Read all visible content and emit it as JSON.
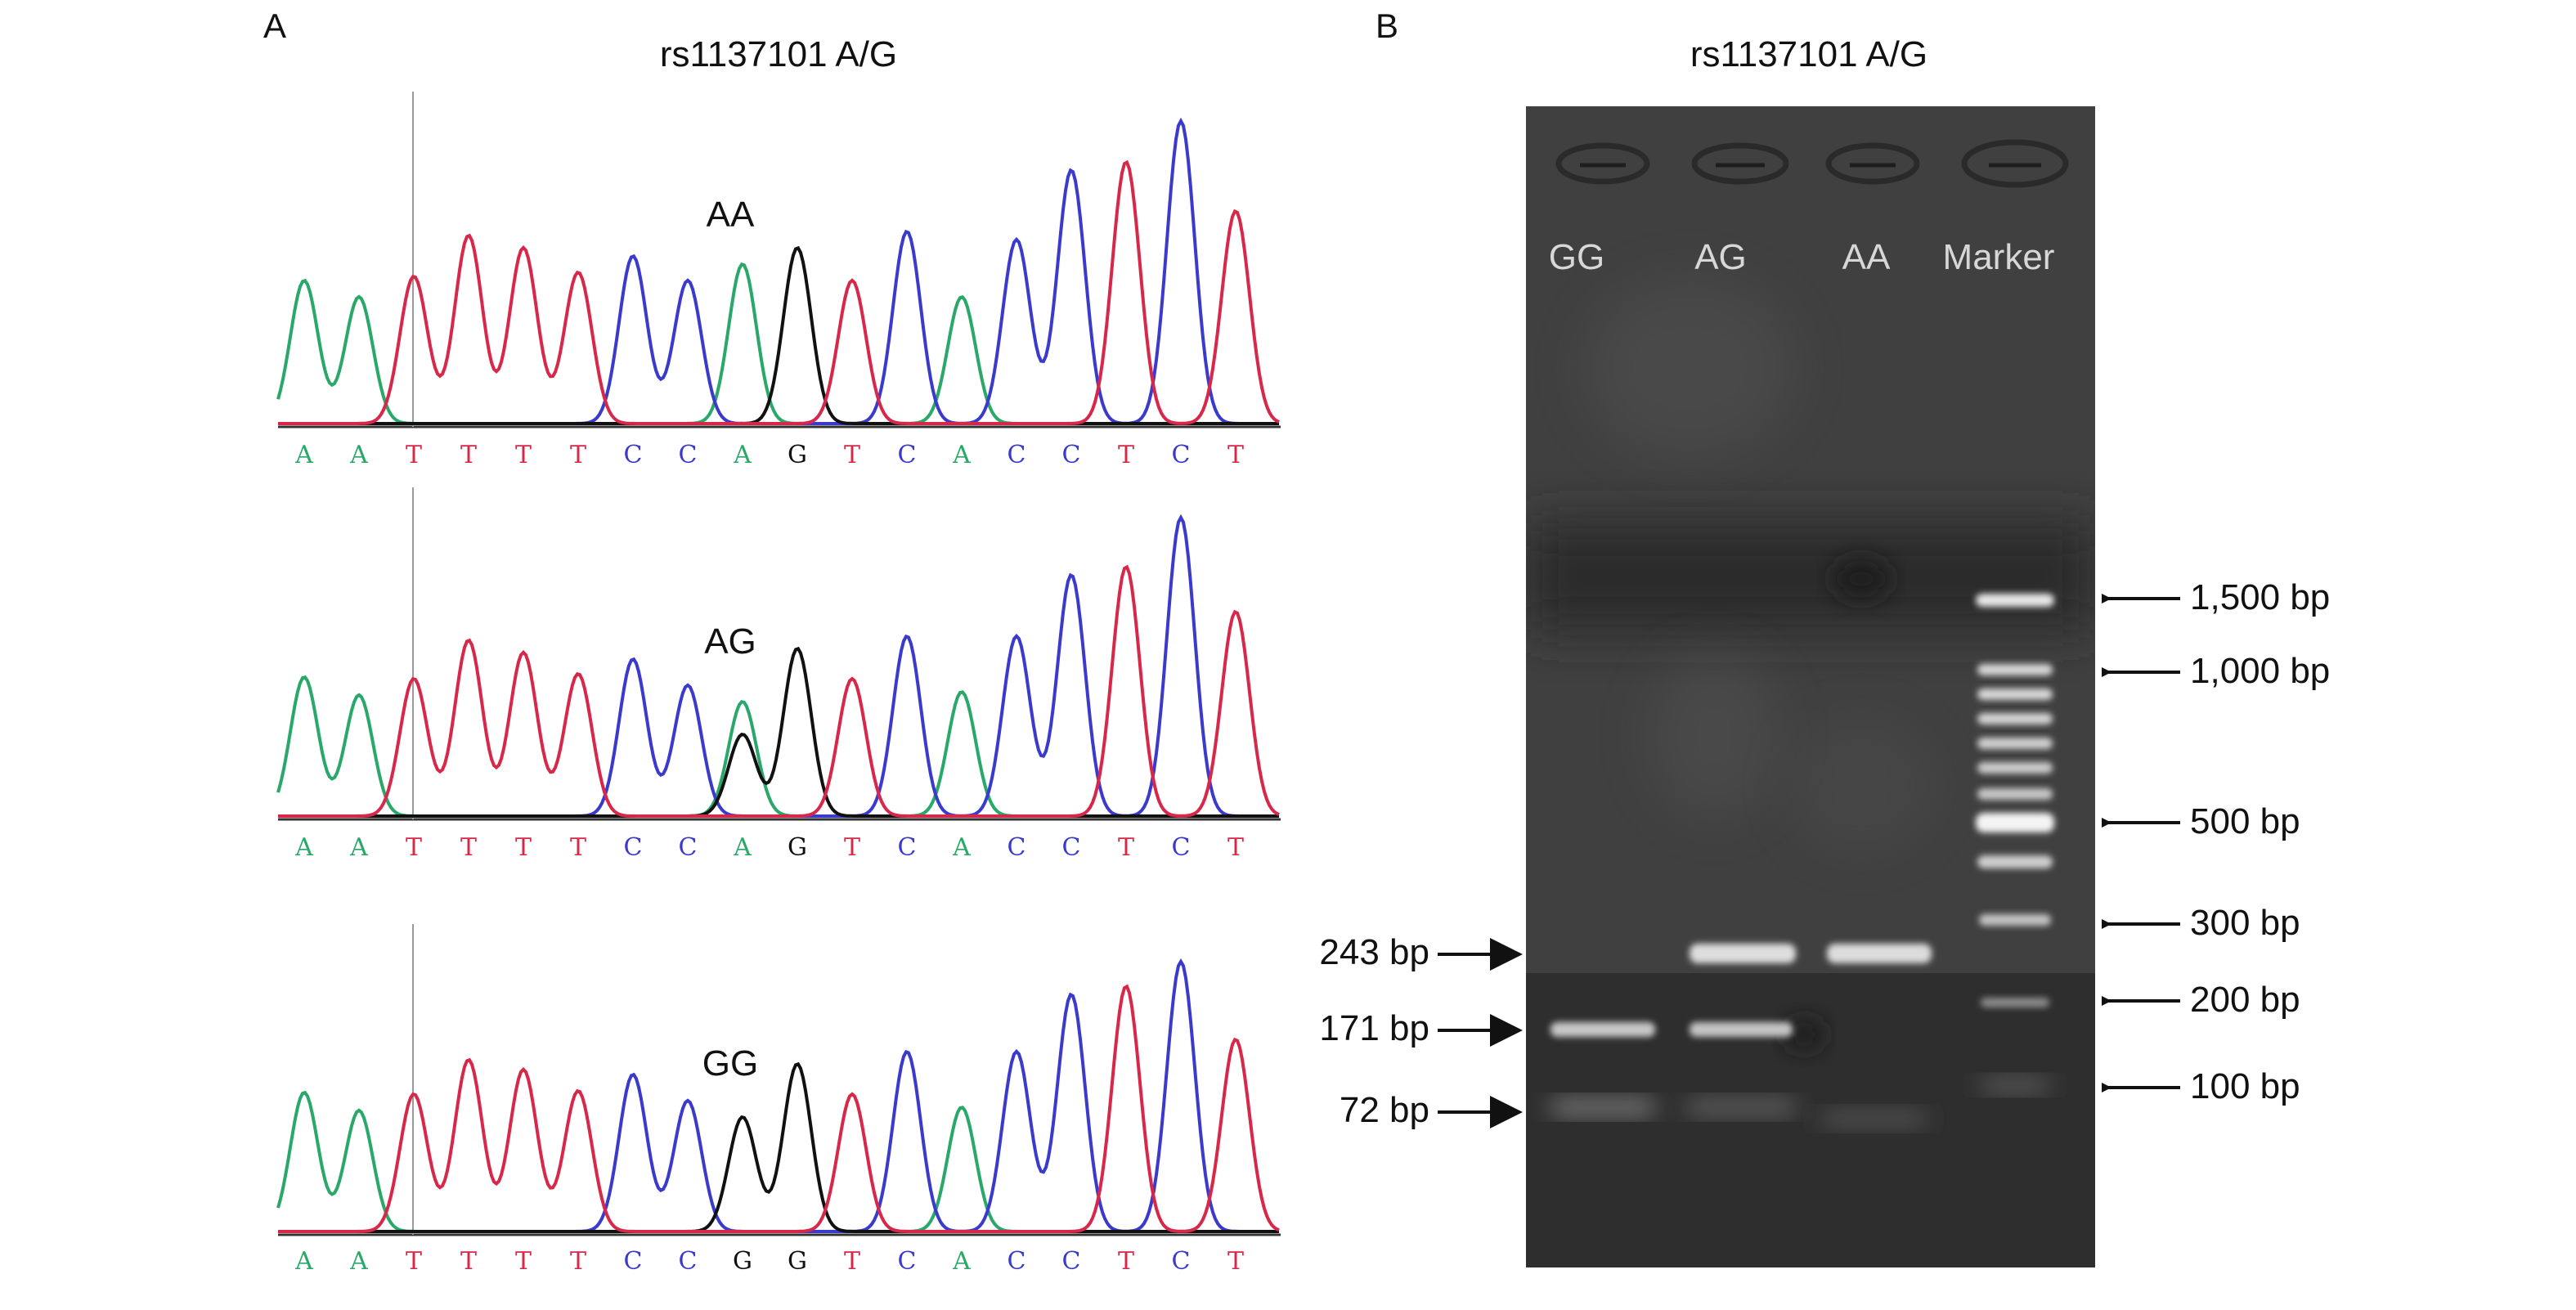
{
  "panel_a": {
    "letter": "A",
    "title": "rs1137101 A/G",
    "colors": {
      "A": "#2aa86a",
      "T": "#d8284a",
      "C": "#3a3acc",
      "G": "#111111"
    },
    "traces": [
      {
        "genotype": "AA",
        "sequence": [
          "A",
          "A",
          "T",
          "T",
          "T",
          "T",
          "C",
          "C",
          "A",
          "G",
          "T",
          "C",
          "A",
          "C",
          "C",
          "T",
          "C",
          "T"
        ]
      },
      {
        "genotype": "AG",
        "sequence": [
          "A",
          "A",
          "T",
          "T",
          "T",
          "T",
          "C",
          "C",
          "A",
          "G",
          "T",
          "C",
          "A",
          "C",
          "C",
          "T",
          "C",
          "T"
        ]
      },
      {
        "genotype": "GG",
        "sequence": [
          "A",
          "A",
          "T",
          "T",
          "T",
          "T",
          "C",
          "C",
          "G",
          "G",
          "T",
          "C",
          "A",
          "C",
          "C",
          "T",
          "C",
          "T"
        ]
      }
    ]
  },
  "panel_b": {
    "letter": "B",
    "title": "rs1137101 A/G",
    "lanes": [
      "GG",
      "AG",
      "AA",
      "Marker"
    ],
    "left_markers": [
      "243 bp",
      "171 bp",
      "72 bp"
    ],
    "right_markers": [
      "1,500 bp",
      "1,000 bp",
      "500 bp",
      "300 bp",
      "200 bp",
      "100 bp"
    ]
  }
}
